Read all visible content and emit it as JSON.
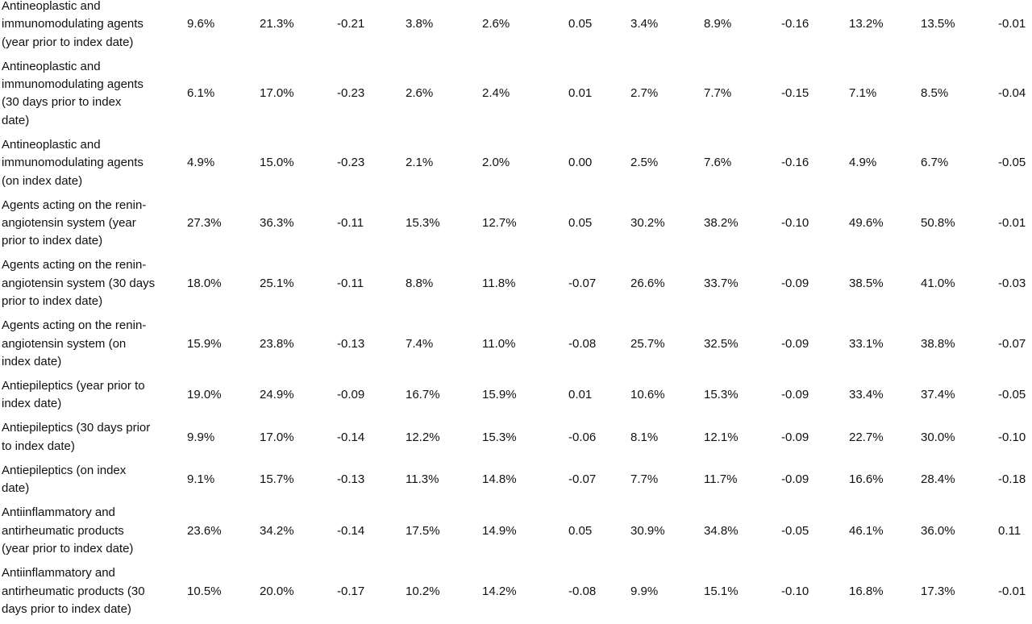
{
  "table": {
    "rows": [
      {
        "label": [
          "Antineoplastic and",
          "immunomodulating agents",
          "(year prior to index date)"
        ],
        "values": [
          "9.6%",
          "21.3%",
          "-0.21",
          "3.8%",
          "2.6%",
          "0.05",
          "3.4%",
          "8.9%",
          "-0.16",
          "13.2%",
          "13.5%",
          "-0.01"
        ]
      },
      {
        "label": [
          "Antineoplastic and",
          "immunomodulating agents",
          "(30 days prior to index",
          "date)"
        ],
        "values": [
          "6.1%",
          "17.0%",
          "-0.23",
          "2.6%",
          "2.4%",
          "0.01",
          "2.7%",
          "7.7%",
          "-0.15",
          "7.1%",
          "8.5%",
          "-0.04"
        ]
      },
      {
        "label": [
          "Antineoplastic and",
          "immunomodulating agents",
          "(on index date)"
        ],
        "values": [
          "4.9%",
          "15.0%",
          "-0.23",
          "2.1%",
          "2.0%",
          "0.00",
          "2.5%",
          "7.6%",
          "-0.16",
          "4.9%",
          "6.7%",
          "-0.05"
        ]
      },
      {
        "label": [
          "Agents acting on the renin-",
          "angiotensin system (year",
          "prior to index date)"
        ],
        "values": [
          "27.3%",
          "36.3%",
          "-0.11",
          "15.3%",
          "12.7%",
          "0.05",
          "30.2%",
          "38.2%",
          "-0.10",
          "49.6%",
          "50.8%",
          "-0.01"
        ]
      },
      {
        "label": [
          "Agents acting on the renin-",
          "angiotensin system (30 days",
          "prior to index date)"
        ],
        "values": [
          "18.0%",
          "25.1%",
          "-0.11",
          "8.8%",
          "11.8%",
          "-0.07",
          "26.6%",
          "33.7%",
          "-0.09",
          "38.5%",
          "41.0%",
          "-0.03"
        ]
      },
      {
        "label": [
          "Agents acting on the renin-",
          "angiotensin system (on",
          "index date)"
        ],
        "values": [
          "15.9%",
          "23.8%",
          "-0.13",
          "7.4%",
          "11.0%",
          "-0.08",
          "25.7%",
          "32.5%",
          "-0.09",
          "33.1%",
          "38.8%",
          "-0.07"
        ]
      },
      {
        "label": [
          "Antiepileptics (year prior to",
          "index date)"
        ],
        "values": [
          "19.0%",
          "24.9%",
          "-0.09",
          "16.7%",
          "15.9%",
          "0.01",
          "10.6%",
          "15.3%",
          "-0.09",
          "33.4%",
          "37.4%",
          "-0.05"
        ]
      },
      {
        "label": [
          "Antiepileptics (30 days prior",
          "to index date)"
        ],
        "values": [
          "9.9%",
          "17.0%",
          "-0.14",
          "12.2%",
          "15.3%",
          "-0.06",
          "8.1%",
          "12.1%",
          "-0.09",
          "22.7%",
          "30.0%",
          "-0.10"
        ]
      },
      {
        "label": [
          "Antiepileptics (on index",
          "date)"
        ],
        "values": [
          "9.1%",
          "15.7%",
          "-0.13",
          "11.3%",
          "14.8%",
          "-0.07",
          "7.7%",
          "11.7%",
          "-0.09",
          "16.6%",
          "28.4%",
          "-0.18"
        ]
      },
      {
        "label": [
          "Antiinflammatory and",
          "antirheumatic products",
          "(year prior to index date)"
        ],
        "values": [
          "23.6%",
          "34.2%",
          "-0.14",
          "17.5%",
          "14.9%",
          "0.05",
          "30.9%",
          "34.8%",
          "-0.05",
          "46.1%",
          "36.0%",
          "0.11"
        ]
      },
      {
        "label": [
          "Antiinflammatory and",
          "antirheumatic products (30",
          "days prior to index date)"
        ],
        "values": [
          "10.5%",
          "20.0%",
          "-0.17",
          "10.2%",
          "14.2%",
          "-0.08",
          "9.9%",
          "15.1%",
          "-0.10",
          "16.8%",
          "17.3%",
          "-0.01"
        ]
      }
    ]
  }
}
